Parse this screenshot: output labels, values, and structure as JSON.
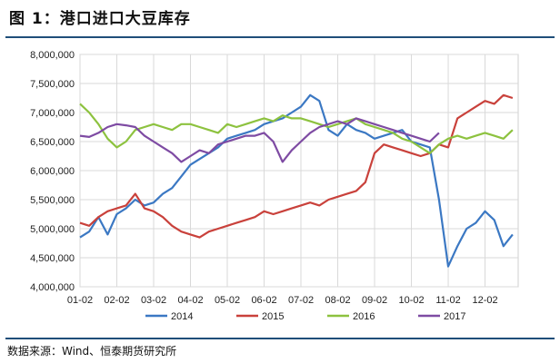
{
  "figure_title": "图 1：港口进口大豆库存",
  "source": "数据来源：Wind、恒泰期货研究所",
  "chart_data": {
    "type": "line",
    "title": "",
    "xlabel": "",
    "ylabel": "",
    "ylim": [
      4000000,
      8000000
    ],
    "y_ticks": [
      4000000,
      4500000,
      5000000,
      5500000,
      6000000,
      6500000,
      7000000,
      7500000,
      8000000
    ],
    "y_tick_labels": [
      "4,000,000",
      "4,500,000",
      "5,000,000",
      "5,500,000",
      "6,000,000",
      "6,500,000",
      "7,000,000",
      "7,500,000",
      "8,000,000"
    ],
    "x_tick_labels": [
      "01-02",
      "02-02",
      "03-02",
      "04-02",
      "05-02",
      "06-02",
      "07-02",
      "08-02",
      "09-02",
      "10-02",
      "11-02",
      "12-02"
    ],
    "x_unit": "month (01-02 = 0, 12-02 = 11)",
    "grid": true,
    "legend_position": "bottom",
    "series": [
      {
        "name": "2014",
        "color": "#3b78c3",
        "x": [
          0,
          0.25,
          0.5,
          0.75,
          1,
          1.25,
          1.5,
          1.75,
          2,
          2.25,
          2.5,
          2.75,
          3,
          3.25,
          3.5,
          3.75,
          4,
          4.25,
          4.5,
          4.75,
          5,
          5.25,
          5.5,
          5.75,
          6,
          6.25,
          6.5,
          6.75,
          7,
          7.25,
          7.5,
          7.75,
          8,
          8.25,
          8.5,
          8.75,
          9,
          9.25,
          9.5,
          9.75,
          10,
          10.25,
          10.5,
          10.75,
          11,
          11.25,
          11.5,
          11.75
        ],
        "values": [
          4850000,
          4950000,
          5200000,
          4900000,
          5250000,
          5350000,
          5500000,
          5400000,
          5450000,
          5600000,
          5700000,
          5900000,
          6100000,
          6200000,
          6300000,
          6400000,
          6550000,
          6600000,
          6650000,
          6700000,
          6800000,
          6850000,
          6900000,
          7000000,
          7100000,
          7300000,
          7200000,
          6700000,
          6600000,
          6800000,
          6700000,
          6650000,
          6550000,
          6600000,
          6650000,
          6700000,
          6500000,
          6450000,
          6400000,
          5500000,
          4350000,
          4700000,
          5000000,
          5100000,
          5300000,
          5150000,
          4700000,
          4900000
        ]
      },
      {
        "name": "2015",
        "color": "#c9413b",
        "x": [
          0,
          0.25,
          0.5,
          0.75,
          1,
          1.25,
          1.5,
          1.75,
          2,
          2.25,
          2.5,
          2.75,
          3,
          3.25,
          3.5,
          3.75,
          4,
          4.25,
          4.5,
          4.75,
          5,
          5.25,
          5.5,
          5.75,
          6,
          6.25,
          6.5,
          6.75,
          7,
          7.25,
          7.5,
          7.75,
          8,
          8.25,
          8.5,
          8.75,
          9,
          9.25,
          9.5,
          9.75,
          10,
          10.25,
          10.5,
          10.75,
          11,
          11.25,
          11.5,
          11.75
        ],
        "values": [
          5100000,
          5050000,
          5200000,
          5300000,
          5350000,
          5400000,
          5600000,
          5350000,
          5300000,
          5200000,
          5050000,
          4950000,
          4900000,
          4850000,
          4950000,
          5000000,
          5050000,
          5100000,
          5150000,
          5200000,
          5300000,
          5250000,
          5300000,
          5350000,
          5400000,
          5450000,
          5400000,
          5500000,
          5550000,
          5600000,
          5650000,
          5800000,
          6300000,
          6450000,
          6400000,
          6350000,
          6300000,
          6250000,
          6300000,
          6450000,
          6400000,
          6900000,
          7000000,
          7100000,
          7200000,
          7150000,
          7300000,
          7250000
        ]
      },
      {
        "name": "2016",
        "color": "#8dc23f",
        "x": [
          0,
          0.25,
          0.5,
          0.75,
          1,
          1.25,
          1.5,
          1.75,
          2,
          2.25,
          2.5,
          2.75,
          3,
          3.25,
          3.5,
          3.75,
          4,
          4.25,
          4.5,
          4.75,
          5,
          5.25,
          5.5,
          5.75,
          6,
          6.25,
          6.5,
          6.75,
          7,
          7.25,
          7.5,
          7.75,
          8,
          8.25,
          8.5,
          8.75,
          9,
          9.25,
          9.5,
          9.75,
          10,
          10.25,
          10.5,
          10.75,
          11,
          11.25,
          11.5,
          11.75
        ],
        "values": [
          7150000,
          7000000,
          6800000,
          6550000,
          6400000,
          6500000,
          6700000,
          6750000,
          6800000,
          6750000,
          6700000,
          6800000,
          6800000,
          6750000,
          6700000,
          6650000,
          6800000,
          6750000,
          6800000,
          6850000,
          6900000,
          6850000,
          6950000,
          6900000,
          6900000,
          6850000,
          6800000,
          6750000,
          6800000,
          6850000,
          6900000,
          6800000,
          6750000,
          6700000,
          6650000,
          6550000,
          6500000,
          6400000,
          6300000,
          6450000,
          6550000,
          6600000,
          6550000,
          6600000,
          6650000,
          6600000,
          6550000,
          6700000
        ]
      },
      {
        "name": "2017",
        "color": "#7e4ba3",
        "x": [
          0,
          0.25,
          0.5,
          0.75,
          1,
          1.25,
          1.5,
          1.75,
          2,
          2.25,
          2.5,
          2.75,
          3,
          3.25,
          3.5,
          3.75,
          4,
          4.25,
          4.5,
          4.75,
          5,
          5.25,
          5.5,
          5.75,
          6,
          6.25,
          6.5,
          6.75,
          7,
          7.25,
          7.5,
          7.75,
          8,
          8.25,
          8.5,
          8.75,
          9,
          9.25,
          9.5,
          9.75
        ],
        "values": [
          6600000,
          6580000,
          6650000,
          6750000,
          6800000,
          6780000,
          6750000,
          6600000,
          6500000,
          6400000,
          6300000,
          6150000,
          6250000,
          6350000,
          6300000,
          6450000,
          6500000,
          6550000,
          6600000,
          6600000,
          6650000,
          6500000,
          6150000,
          6350000,
          6500000,
          6650000,
          6750000,
          6800000,
          6850000,
          6800000,
          6900000,
          6850000,
          6800000,
          6750000,
          6700000,
          6650000,
          6600000,
          6550000,
          6500000,
          6650000
        ]
      }
    ]
  }
}
